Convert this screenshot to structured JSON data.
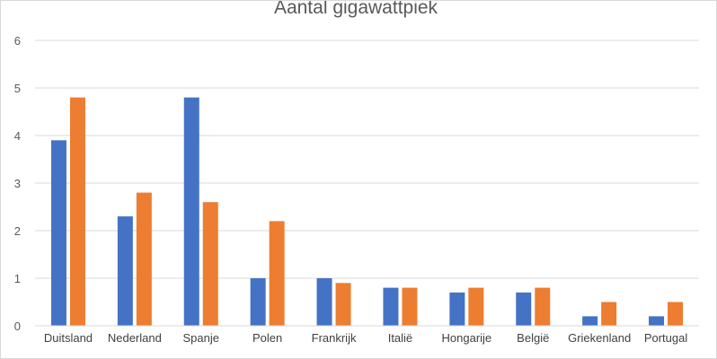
{
  "chart_data": {
    "type": "bar",
    "title": "Aantal gigawattpiek",
    "xlabel": "",
    "ylabel": "",
    "categories": [
      "Duitsland",
      "Nederland",
      "Spanje",
      "Polen",
      "Frankrijk",
      "Italië",
      "Hongarije",
      "België",
      "Griekenland",
      "Portugal"
    ],
    "series": [
      {
        "values": [
          3.9,
          2.3,
          4.8,
          1.0,
          1.0,
          0.8,
          0.7,
          0.7,
          0.2,
          0.2
        ],
        "color": "#4472c4"
      },
      {
        "values": [
          4.8,
          2.8,
          2.6,
          2.2,
          0.9,
          0.8,
          0.8,
          0.8,
          0.5,
          0.5
        ],
        "color": "#ed7d31"
      }
    ],
    "ylim": [
      0,
      6
    ],
    "yticks": [
      0,
      1,
      2,
      3,
      4,
      5,
      6
    ],
    "grid": true,
    "legend": "none"
  }
}
